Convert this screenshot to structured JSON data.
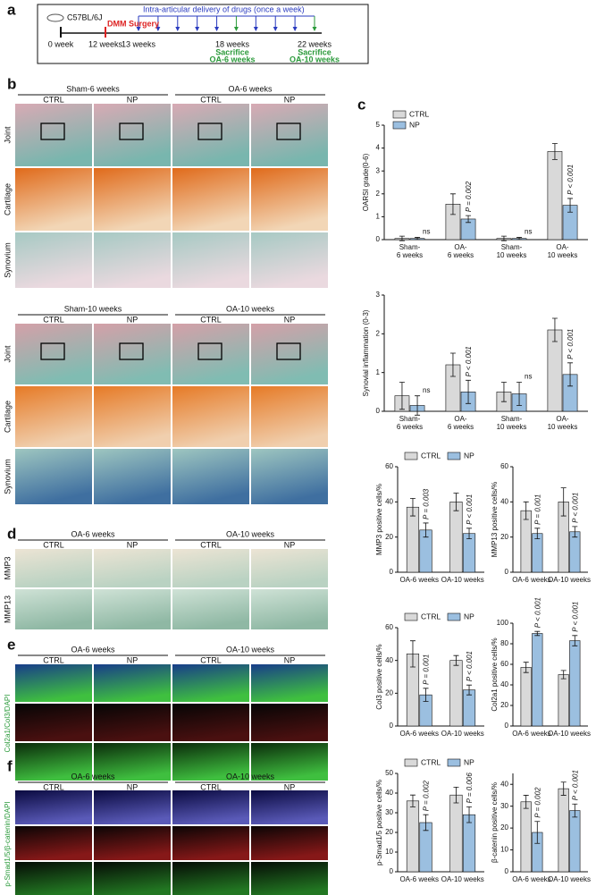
{
  "panel_labels": [
    "a",
    "b",
    "c",
    "d",
    "e",
    "f"
  ],
  "timeline": {
    "strain": "C57BL/6J",
    "surgery": "DMM Surgery",
    "delivery": "Intra-articular delivery of drugs (once a week)",
    "points": [
      "0 week",
      "12 weeks",
      "13 weeks",
      "18 weeks",
      "22 weeks"
    ],
    "sacrifice": [
      {
        "label": "Sacrifice",
        "group": "OA-6 weeks"
      },
      {
        "label": "Sacrifice",
        "group": "OA-10 weeks"
      }
    ]
  },
  "histology": [
    {
      "groups": [
        "Sham-6 weeks",
        "OA-6 weeks"
      ],
      "columns": [
        "CTRL",
        "NP",
        "CTRL",
        "NP"
      ],
      "rows": [
        "Joint",
        "Cartilage",
        "Synovium"
      ]
    },
    {
      "groups": [
        "Sham-10 weeks",
        "OA-10 weeks"
      ],
      "columns": [
        "CTRL",
        "NP",
        "CTRL",
        "NP"
      ],
      "rows": [
        "Joint",
        "Cartilage",
        "Synovium"
      ]
    },
    {
      "groups": [
        "OA-6 weeks",
        "OA-10 weeks"
      ],
      "columns": [
        "CTRL",
        "NP",
        "CTRL",
        "NP"
      ],
      "rows": [
        "MMP3",
        "MMP13"
      ]
    },
    {
      "groups": [
        "OA-6 weeks",
        "OA-10 weeks"
      ],
      "columns": [
        "CTRL",
        "NP",
        "CTRL",
        "NP"
      ],
      "stain": "Col2a1/Col3/DAPI"
    },
    {
      "groups": [
        "OA-6 weeks",
        "OA-10 weeks"
      ],
      "columns": [
        "CTRL",
        "NP",
        "CTRL",
        "NP"
      ],
      "stain": "p-Smad1/5/β-catenin/DAPI"
    }
  ],
  "chart_data": [
    {
      "type": "bar",
      "y_label": "OARSI grade(0-6)",
      "categories": [
        "Sham-\n6 weeks",
        "OA-\n6 weeks",
        "Sham-\n10 weeks",
        "OA-\n10 weeks"
      ],
      "series": [
        {
          "name": "CTRL",
          "color": "#d9d9d9",
          "values": [
            0.05,
            1.55,
            0.05,
            3.85
          ],
          "errors": [
            0.1,
            0.45,
            0.1,
            0.35
          ]
        },
        {
          "name": "NP",
          "color": "#9bbfe0",
          "values": [
            0.05,
            0.9,
            0.05,
            1.5
          ],
          "errors": [
            0.05,
            0.15,
            0.05,
            0.3
          ]
        }
      ],
      "annotations": [
        "ns",
        "P = 0.002",
        "ns",
        "P < 0.001"
      ],
      "ylim": [
        0,
        5
      ],
      "yticks": [
        0,
        1,
        2,
        3,
        4,
        5
      ],
      "legend": "top-left"
    },
    {
      "type": "bar",
      "y_label": "Synovial inflammation (0-3)",
      "categories": [
        "Sham-\n6 weeks",
        "OA-\n6 weeks",
        "Sham-\n10 weeks",
        "OA-\n10 weeks"
      ],
      "series": [
        {
          "color": "#d9d9d9",
          "values": [
            0.4,
            1.2,
            0.5,
            2.1
          ],
          "errors": [
            0.35,
            0.3,
            0.25,
            0.3
          ]
        },
        {
          "color": "#9bbfe0",
          "values": [
            0.15,
            0.5,
            0.45,
            0.95
          ],
          "errors": [
            0.25,
            0.3,
            0.3,
            0.3
          ]
        }
      ],
      "annotations": [
        "ns",
        "P < 0.001",
        "ns",
        "P < 0.001"
      ],
      "ylim": [
        0,
        3
      ],
      "yticks": [
        0,
        1,
        2,
        3
      ]
    },
    {
      "type": "bar",
      "y_label": "MMP3 positive cells/%",
      "categories": [
        "OA-6 weeks",
        "OA-10 weeks"
      ],
      "series": [
        {
          "name": "CTRL",
          "color": "#d9d9d9",
          "values": [
            37,
            40
          ],
          "errors": [
            5,
            5
          ]
        },
        {
          "name": "NP",
          "color": "#9bbfe0",
          "values": [
            24,
            22
          ],
          "errors": [
            4,
            3
          ]
        }
      ],
      "annotations": [
        "P = 0.003",
        "P < 0.001"
      ],
      "ylim": [
        0,
        60
      ],
      "yticks": [
        0,
        20,
        40,
        60
      ],
      "legend": "top"
    },
    {
      "type": "bar",
      "y_label": "MMP13 positive cells/%",
      "categories": [
        "OA-6 weeks",
        "OA-10 weeks"
      ],
      "series": [
        {
          "color": "#d9d9d9",
          "values": [
            35,
            40
          ],
          "errors": [
            5,
            8
          ]
        },
        {
          "color": "#9bbfe0",
          "values": [
            22,
            23
          ],
          "errors": [
            3,
            3
          ]
        }
      ],
      "annotations": [
        "P = 0.001",
        "P < 0.001"
      ],
      "ylim": [
        0,
        60
      ],
      "yticks": [
        0,
        20,
        40,
        60
      ]
    },
    {
      "type": "bar",
      "y_label": "Col3 positive cells/%",
      "categories": [
        "OA-6 weeks",
        "OA-10 weeks"
      ],
      "series": [
        {
          "name": "CTRL",
          "color": "#d9d9d9",
          "values": [
            44,
            40
          ],
          "errors": [
            8,
            3
          ]
        },
        {
          "name": "NP",
          "color": "#9bbfe0",
          "values": [
            19,
            22
          ],
          "errors": [
            4,
            3
          ]
        }
      ],
      "annotations": [
        "P = 0.001",
        "P < 0.001"
      ],
      "ylim": [
        0,
        60
      ],
      "yticks": [
        0,
        20,
        40,
        60
      ],
      "legend": "top"
    },
    {
      "type": "bar",
      "y_label": "Col2a1 positive cells/%",
      "categories": [
        "OA-6 weeks",
        "OA-10 weeks"
      ],
      "series": [
        {
          "color": "#d9d9d9",
          "values": [
            57,
            50
          ],
          "errors": [
            5,
            4
          ]
        },
        {
          "color": "#9bbfe0",
          "values": [
            90,
            83
          ],
          "errors": [
            2,
            5
          ]
        }
      ],
      "annotations": [
        "P < 0.001",
        "P < 0.001"
      ],
      "ylim": [
        0,
        100
      ],
      "yticks": [
        0,
        20,
        40,
        60,
        80,
        100
      ]
    },
    {
      "type": "bar",
      "y_label": "p-Smad1/5 positive cells/%",
      "categories": [
        "OA-6 weeks",
        "OA-10 weeks"
      ],
      "series": [
        {
          "name": "CTRL",
          "color": "#d9d9d9",
          "values": [
            36,
            39
          ],
          "errors": [
            3,
            4
          ]
        },
        {
          "name": "NP",
          "color": "#9bbfe0",
          "values": [
            25,
            29
          ],
          "errors": [
            4,
            4
          ]
        }
      ],
      "annotations": [
        "P = 0.002",
        "P = 0.006"
      ],
      "ylim": [
        0,
        50
      ],
      "yticks": [
        0,
        10,
        20,
        30,
        40,
        50
      ],
      "legend": "top"
    },
    {
      "type": "bar",
      "y_label": "β-catenin positive cells/%",
      "categories": [
        "OA-6 weeks",
        "OA-10 weeks"
      ],
      "series": [
        {
          "color": "#d9d9d9",
          "values": [
            32,
            38
          ],
          "errors": [
            3,
            3
          ]
        },
        {
          "color": "#9bbfe0",
          "values": [
            18,
            28
          ],
          "errors": [
            5,
            3
          ]
        }
      ],
      "annotations": [
        "P = 0.002",
        "P < 0.001"
      ],
      "ylim": [
        0,
        45
      ],
      "yticks": [
        0,
        10,
        20,
        30,
        40
      ]
    }
  ]
}
